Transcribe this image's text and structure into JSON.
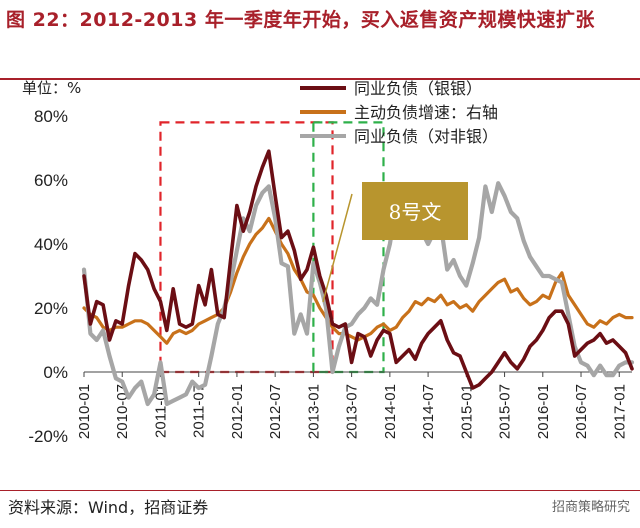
{
  "header": {
    "title": "图 22：2012-2013 年一季度年开始，买入返售资产规模快速扩张"
  },
  "footer": {
    "source": "资料来源：Wind，招商证券",
    "watermark": "招商策略研究"
  },
  "colors": {
    "title": "#a8202a",
    "series_bank": "#6b0e14",
    "series_growth": "#c8711a",
    "series_nonbank": "#a6a6a6",
    "red_box": "#e0242a",
    "green_box": "#2eb04a",
    "annotation_bg": "#b8952e"
  },
  "chart_data": {
    "type": "line",
    "unit_label": "单位：%",
    "ylim": [
      -20,
      80
    ],
    "yticks": [
      "-20%",
      "0%",
      "20%",
      "40%",
      "60%",
      "80%"
    ],
    "ytick_values": [
      -20,
      0,
      20,
      40,
      60,
      80
    ],
    "xlim": [
      "2010-01",
      "2017-03"
    ],
    "xticks": [
      "2010-01",
      "2010-07",
      "2011-01",
      "2011-07",
      "2012-01",
      "2012-07",
      "2013-01",
      "2013-07",
      "2014-01",
      "2014-07",
      "2015-01",
      "2015-07",
      "2016-01",
      "2016-07",
      "2017-01"
    ],
    "legend_position": "top-right",
    "grid": false,
    "series": [
      {
        "name": "同业负债（银银）",
        "color_key": "series_bank",
        "points": [
          [
            "2010-01",
            30
          ],
          [
            "2010-02",
            15
          ],
          [
            "2010-03",
            22
          ],
          [
            "2010-04",
            21
          ],
          [
            "2010-05",
            10
          ],
          [
            "2010-06",
            16
          ],
          [
            "2010-07",
            15
          ],
          [
            "2010-08",
            27
          ],
          [
            "2010-09",
            37
          ],
          [
            "2010-10",
            35
          ],
          [
            "2010-11",
            32
          ],
          [
            "2010-12",
            26
          ],
          [
            "2011-01",
            22
          ],
          [
            "2011-02",
            13
          ],
          [
            "2011-03",
            26
          ],
          [
            "2011-04",
            15
          ],
          [
            "2011-05",
            14
          ],
          [
            "2011-06",
            15
          ],
          [
            "2011-07",
            27
          ],
          [
            "2011-08",
            21
          ],
          [
            "2011-09",
            32
          ],
          [
            "2011-10",
            18
          ],
          [
            "2011-11",
            17
          ],
          [
            "2011-12",
            35
          ],
          [
            "2012-01",
            52
          ],
          [
            "2012-02",
            44
          ],
          [
            "2012-03",
            50
          ],
          [
            "2012-04",
            58
          ],
          [
            "2012-05",
            64
          ],
          [
            "2012-06",
            69
          ],
          [
            "2012-07",
            55
          ],
          [
            "2012-08",
            42
          ],
          [
            "2012-09",
            44
          ],
          [
            "2012-10",
            38
          ],
          [
            "2012-11",
            29
          ],
          [
            "2012-12",
            32
          ],
          [
            "2013-01",
            39
          ],
          [
            "2013-02",
            30
          ],
          [
            "2013-03",
            24
          ],
          [
            "2013-04",
            15
          ],
          [
            "2013-05",
            14
          ],
          [
            "2013-06",
            15
          ],
          [
            "2013-07",
            3
          ],
          [
            "2013-08",
            12
          ],
          [
            "2013-09",
            11
          ],
          [
            "2013-10",
            5
          ],
          [
            "2013-11",
            10
          ],
          [
            "2013-12",
            13
          ],
          [
            "2014-01",
            12
          ],
          [
            "2014-02",
            3
          ],
          [
            "2014-03",
            5
          ],
          [
            "2014-04",
            7
          ],
          [
            "2014-05",
            4
          ],
          [
            "2014-06",
            9
          ],
          [
            "2014-07",
            12
          ],
          [
            "2014-08",
            14
          ],
          [
            "2014-09",
            16
          ],
          [
            "2014-10",
            10
          ],
          [
            "2014-11",
            6
          ],
          [
            "2014-12",
            5
          ],
          [
            "2015-01",
            0
          ],
          [
            "2015-02",
            -5
          ],
          [
            "2015-03",
            -4
          ],
          [
            "2015-04",
            -2
          ],
          [
            "2015-05",
            0
          ],
          [
            "2015-06",
            3
          ],
          [
            "2015-07",
            6
          ],
          [
            "2015-08",
            3
          ],
          [
            "2015-09",
            1
          ],
          [
            "2015-10",
            4
          ],
          [
            "2015-11",
            8
          ],
          [
            "2015-12",
            10
          ],
          [
            "2016-01",
            13
          ],
          [
            "2016-02",
            17
          ],
          [
            "2016-03",
            19
          ],
          [
            "2016-04",
            19
          ],
          [
            "2016-05",
            15
          ],
          [
            "2016-06",
            5
          ],
          [
            "2016-07",
            7
          ],
          [
            "2016-08",
            9
          ],
          [
            "2016-09",
            10
          ],
          [
            "2016-10",
            12
          ],
          [
            "2016-11",
            9
          ],
          [
            "2016-12",
            10
          ],
          [
            "2017-01",
            8
          ],
          [
            "2017-02",
            6
          ],
          [
            "2017-03",
            1
          ]
        ]
      },
      {
        "name": "主动负债增速：右轴",
        "color_key": "series_growth",
        "points": [
          [
            "2010-01",
            20
          ],
          [
            "2010-02",
            18
          ],
          [
            "2010-03",
            17
          ],
          [
            "2010-04",
            14
          ],
          [
            "2010-05",
            13
          ],
          [
            "2010-06",
            14
          ],
          [
            "2010-07",
            14
          ],
          [
            "2010-08",
            15
          ],
          [
            "2010-09",
            16
          ],
          [
            "2010-10",
            16
          ],
          [
            "2010-11",
            15
          ],
          [
            "2010-12",
            13
          ],
          [
            "2011-01",
            11
          ],
          [
            "2011-02",
            9
          ],
          [
            "2011-03",
            12
          ],
          [
            "2011-04",
            13
          ],
          [
            "2011-05",
            12
          ],
          [
            "2011-06",
            13
          ],
          [
            "2011-07",
            15
          ],
          [
            "2011-08",
            16
          ],
          [
            "2011-09",
            17
          ],
          [
            "2011-10",
            18
          ],
          [
            "2011-11",
            20
          ],
          [
            "2011-12",
            25
          ],
          [
            "2012-01",
            31
          ],
          [
            "2012-02",
            36
          ],
          [
            "2012-03",
            40
          ],
          [
            "2012-04",
            43
          ],
          [
            "2012-05",
            45
          ],
          [
            "2012-06",
            48
          ],
          [
            "2012-07",
            44
          ],
          [
            "2012-08",
            40
          ],
          [
            "2012-09",
            37
          ],
          [
            "2012-10",
            32
          ],
          [
            "2012-11",
            29
          ],
          [
            "2012-12",
            25
          ],
          [
            "2013-01",
            24
          ],
          [
            "2013-02",
            20
          ],
          [
            "2013-03",
            17
          ],
          [
            "2013-04",
            14
          ],
          [
            "2013-05",
            12
          ],
          [
            "2013-06",
            12
          ],
          [
            "2013-07",
            11
          ],
          [
            "2013-08",
            10
          ],
          [
            "2013-09",
            11
          ],
          [
            "2013-10",
            12
          ],
          [
            "2013-11",
            14
          ],
          [
            "2013-12",
            15
          ],
          [
            "2014-01",
            13
          ],
          [
            "2014-02",
            14
          ],
          [
            "2014-03",
            17
          ],
          [
            "2014-04",
            19
          ],
          [
            "2014-05",
            22
          ],
          [
            "2014-06",
            21
          ],
          [
            "2014-07",
            23
          ],
          [
            "2014-08",
            22
          ],
          [
            "2014-09",
            24
          ],
          [
            "2014-10",
            21
          ],
          [
            "2014-11",
            22
          ],
          [
            "2014-12",
            20
          ],
          [
            "2015-01",
            21
          ],
          [
            "2015-02",
            19
          ],
          [
            "2015-03",
            22
          ],
          [
            "2015-04",
            24
          ],
          [
            "2015-05",
            26
          ],
          [
            "2015-06",
            28
          ],
          [
            "2015-07",
            29
          ],
          [
            "2015-08",
            25
          ],
          [
            "2015-09",
            26
          ],
          [
            "2015-10",
            23
          ],
          [
            "2015-11",
            21
          ],
          [
            "2015-12",
            22
          ],
          [
            "2016-01",
            24
          ],
          [
            "2016-02",
            23
          ],
          [
            "2016-03",
            28
          ],
          [
            "2016-04",
            31
          ],
          [
            "2016-05",
            24
          ],
          [
            "2016-06",
            21
          ],
          [
            "2016-07",
            18
          ],
          [
            "2016-08",
            15
          ],
          [
            "2016-09",
            14
          ],
          [
            "2016-10",
            16
          ],
          [
            "2016-11",
            15
          ],
          [
            "2016-12",
            17
          ],
          [
            "2017-01",
            18
          ],
          [
            "2017-02",
            17
          ],
          [
            "2017-03",
            17
          ]
        ]
      },
      {
        "name": "同业负债（对非银）",
        "color_key": "series_nonbank",
        "points": [
          [
            "2010-01",
            32
          ],
          [
            "2010-02",
            12
          ],
          [
            "2010-03",
            10
          ],
          [
            "2010-04",
            13
          ],
          [
            "2010-05",
            5
          ],
          [
            "2010-06",
            -2
          ],
          [
            "2010-07",
            -3
          ],
          [
            "2010-08",
            -8
          ],
          [
            "2010-09",
            -5
          ],
          [
            "2010-10",
            -3
          ],
          [
            "2010-11",
            -10
          ],
          [
            "2010-12",
            -7
          ],
          [
            "2011-01",
            3
          ],
          [
            "2011-02",
            -10
          ],
          [
            "2011-03",
            -9
          ],
          [
            "2011-04",
            -8
          ],
          [
            "2011-05",
            -7
          ],
          [
            "2011-06",
            -3
          ],
          [
            "2011-07",
            -5
          ],
          [
            "2011-08",
            -4
          ],
          [
            "2011-09",
            5
          ],
          [
            "2011-10",
            15
          ],
          [
            "2011-11",
            20
          ],
          [
            "2011-12",
            28
          ],
          [
            "2012-01",
            38
          ],
          [
            "2012-02",
            48
          ],
          [
            "2012-03",
            44
          ],
          [
            "2012-04",
            52
          ],
          [
            "2012-05",
            56
          ],
          [
            "2012-06",
            58
          ],
          [
            "2012-07",
            48
          ],
          [
            "2012-08",
            34
          ],
          [
            "2012-09",
            33
          ],
          [
            "2012-10",
            12
          ],
          [
            "2012-11",
            18
          ],
          [
            "2012-12",
            12
          ],
          [
            "2013-01",
            34
          ],
          [
            "2013-02",
            28
          ],
          [
            "2013-03",
            20
          ],
          [
            "2013-04",
            0
          ],
          [
            "2013-05",
            8
          ],
          [
            "2013-06",
            14
          ],
          [
            "2013-07",
            15
          ],
          [
            "2013-08",
            18
          ],
          [
            "2013-09",
            20
          ],
          [
            "2013-10",
            23
          ],
          [
            "2013-11",
            21
          ],
          [
            "2013-12",
            32
          ],
          [
            "2014-01",
            40
          ],
          [
            "2014-02",
            52
          ],
          [
            "2014-03",
            46
          ],
          [
            "2014-04",
            44
          ],
          [
            "2014-05",
            48
          ],
          [
            "2014-06",
            44
          ],
          [
            "2014-07",
            40
          ],
          [
            "2014-08",
            44
          ],
          [
            "2014-09",
            46
          ],
          [
            "2014-10",
            32
          ],
          [
            "2014-11",
            35
          ],
          [
            "2014-12",
            30
          ],
          [
            "2015-01",
            27
          ],
          [
            "2015-02",
            34
          ],
          [
            "2015-03",
            42
          ],
          [
            "2015-04",
            58
          ],
          [
            "2015-05",
            50
          ],
          [
            "2015-06",
            59
          ],
          [
            "2015-07",
            55
          ],
          [
            "2015-08",
            50
          ],
          [
            "2015-09",
            48
          ],
          [
            "2015-10",
            41
          ],
          [
            "2015-11",
            36
          ],
          [
            "2015-12",
            33
          ],
          [
            "2016-01",
            30
          ],
          [
            "2016-02",
            30
          ],
          [
            "2016-03",
            29
          ],
          [
            "2016-04",
            28
          ],
          [
            "2016-05",
            18
          ],
          [
            "2016-06",
            8
          ],
          [
            "2016-07",
            3
          ],
          [
            "2016-08",
            2
          ],
          [
            "2016-09",
            -1
          ],
          [
            "2016-10",
            2
          ],
          [
            "2016-11",
            -1
          ],
          [
            "2016-12",
            -1
          ],
          [
            "2017-01",
            2
          ],
          [
            "2017-02",
            3
          ],
          [
            "2017-03",
            3
          ]
        ]
      }
    ],
    "annotations": [
      {
        "type": "box",
        "style": "dashed",
        "color_key": "red_box",
        "x": [
          "2011-01",
          "2013-04"
        ],
        "y": [
          0,
          78
        ]
      },
      {
        "type": "box",
        "style": "dashed",
        "color_key": "green_box",
        "x": [
          "2013-01",
          "2013-12"
        ],
        "y": [
          0,
          78
        ]
      },
      {
        "type": "callout",
        "text": "8号文"
      }
    ]
  }
}
